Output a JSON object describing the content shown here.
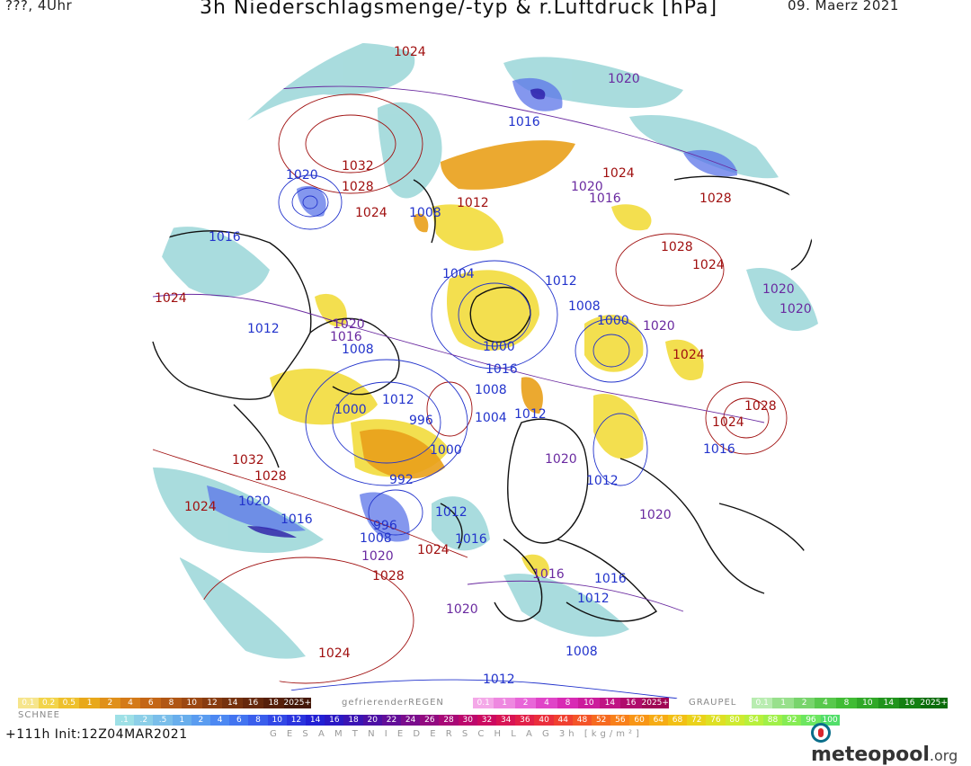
{
  "header": {
    "run_label": "???, 4Uhr",
    "title": "3h Niederschlagsmenge/-typ & r.Luftdruck [hPa]",
    "date": "09. Maerz 2021"
  },
  "map": {
    "colors": {
      "water_bg": "#ffffff",
      "rain_yellow": "#f2dc3c",
      "rain_orange": "#e9a01a",
      "snow_cyan": "#9ad6d8",
      "snow_blue": "#5b74e8",
      "snow_dark": "#2a1aa8",
      "isobar_high": "#a01010",
      "isobar_low": "#2233cc",
      "isobar_mid": "#6a2aa0"
    },
    "isobar_labels": [
      {
        "text": "1024",
        "kind": "high"
      },
      {
        "text": "1020",
        "kind": "mid"
      },
      {
        "text": "1016",
        "kind": "low"
      },
      {
        "text": "1020",
        "kind": "low"
      },
      {
        "text": "1032",
        "kind": "high"
      },
      {
        "text": "1028",
        "kind": "high"
      },
      {
        "text": "1024",
        "kind": "high"
      },
      {
        "text": "1008",
        "kind": "low"
      },
      {
        "text": "1012",
        "kind": "high"
      },
      {
        "text": "1020",
        "kind": "mid"
      },
      {
        "text": "1016",
        "kind": "mid"
      },
      {
        "text": "1024",
        "kind": "high"
      },
      {
        "text": "1028",
        "kind": "high"
      },
      {
        "text": "1016",
        "kind": "low"
      },
      {
        "text": "1028",
        "kind": "high"
      },
      {
        "text": "1024",
        "kind": "high"
      },
      {
        "text": "1004",
        "kind": "low"
      },
      {
        "text": "1012",
        "kind": "low"
      },
      {
        "text": "1020",
        "kind": "mid"
      },
      {
        "text": "1020",
        "kind": "mid"
      },
      {
        "text": "1024",
        "kind": "high"
      },
      {
        "text": "1012",
        "kind": "low"
      },
      {
        "text": "1020",
        "kind": "mid"
      },
      {
        "text": "1016",
        "kind": "mid"
      },
      {
        "text": "1008",
        "kind": "low"
      },
      {
        "text": "1008",
        "kind": "low"
      },
      {
        "text": "1000",
        "kind": "low"
      },
      {
        "text": "1020",
        "kind": "mid"
      },
      {
        "text": "1000",
        "kind": "low"
      },
      {
        "text": "1024",
        "kind": "high"
      },
      {
        "text": "1016",
        "kind": "low"
      },
      {
        "text": "1012",
        "kind": "low"
      },
      {
        "text": "1000",
        "kind": "low"
      },
      {
        "text": "996",
        "kind": "low"
      },
      {
        "text": "1008",
        "kind": "low"
      },
      {
        "text": "1004",
        "kind": "low"
      },
      {
        "text": "1012",
        "kind": "low"
      },
      {
        "text": "1028",
        "kind": "high"
      },
      {
        "text": "1024",
        "kind": "high"
      },
      {
        "text": "1000",
        "kind": "low"
      },
      {
        "text": "1016",
        "kind": "low"
      },
      {
        "text": "1032",
        "kind": "high"
      },
      {
        "text": "1028",
        "kind": "high"
      },
      {
        "text": "992",
        "kind": "low"
      },
      {
        "text": "1020",
        "kind": "mid"
      },
      {
        "text": "1012",
        "kind": "low"
      },
      {
        "text": "1024",
        "kind": "high"
      },
      {
        "text": "1020",
        "kind": "low"
      },
      {
        "text": "1016",
        "kind": "low"
      },
      {
        "text": "996",
        "kind": "low"
      },
      {
        "text": "1012",
        "kind": "low"
      },
      {
        "text": "1008",
        "kind": "low"
      },
      {
        "text": "1016",
        "kind": "low"
      },
      {
        "text": "1020",
        "kind": "mid"
      },
      {
        "text": "1020",
        "kind": "low"
      },
      {
        "text": "1024",
        "kind": "high"
      },
      {
        "text": "1028",
        "kind": "high"
      },
      {
        "text": "1016",
        "kind": "mid"
      },
      {
        "text": "1016",
        "kind": "low"
      },
      {
        "text": "1012",
        "kind": "low"
      },
      {
        "text": "1020",
        "kind": "mid"
      },
      {
        "text": "1024",
        "kind": "high"
      },
      {
        "text": "1008",
        "kind": "low"
      },
      {
        "text": "1012",
        "kind": "low"
      }
    ]
  },
  "legends": {
    "snow": {
      "label": "SCHNEE",
      "values": [
        "0.1",
        "0.2",
        "0.5",
        "1",
        "2",
        "4",
        "6",
        "8",
        "10",
        "12",
        "14",
        "16",
        "18",
        "2025+"
      ],
      "colors": [
        "#f6e58c",
        "#f2d44a",
        "#eec02c",
        "#e8a81a",
        "#e0901a",
        "#d47a18",
        "#c46616",
        "#b05614",
        "#9c4812",
        "#883c10",
        "#76320e",
        "#66280c",
        "#561f0a",
        "#441808"
      ]
    },
    "freezing_rain": {
      "label": "gefrierenderREGEN",
      "values": [
        "0.1",
        "1",
        "2",
        "4",
        "8",
        "10",
        "14",
        "16",
        "2025+"
      ],
      "colors": [
        "#f4a8e8",
        "#ee88e0",
        "#e866d8",
        "#e044c8",
        "#d82ab4",
        "#cc1c9c",
        "#c01484",
        "#b00c6c",
        "#a00654"
      ]
    },
    "graupel": {
      "label": "GRAUPEL",
      "values": [
        "0.1",
        "1",
        "2",
        "4",
        "8",
        "10",
        "14",
        "16",
        "2025+"
      ],
      "colors": [
        "#b8ecb0",
        "#98e08c",
        "#78d46c",
        "#58c84c",
        "#40bc34",
        "#30a828",
        "#20941c",
        "#148012",
        "#0a6c0a"
      ]
    },
    "total": {
      "label": "G E S A M T N I E D E R S C H L A G   3h   [kg/m²]",
      "values": [
        ".1",
        ".2",
        ".5",
        "1",
        "2",
        "4",
        "6",
        "8",
        "10",
        "12",
        "14",
        "16",
        "18",
        "20",
        "22",
        "24",
        "26",
        "28",
        "30",
        "32",
        "34",
        "36",
        "40",
        "44",
        "48",
        "52",
        "56",
        "60",
        "64",
        "68",
        "72",
        "76",
        "80",
        "84",
        "88",
        "92",
        "96",
        "100"
      ],
      "colors": [
        "#9ee0e6",
        "#8ccfe8",
        "#7abeea",
        "#68aeec",
        "#5a9cf0",
        "#4c88f2",
        "#4274f0",
        "#3a5eec",
        "#3248e6",
        "#2a34de",
        "#2220d4",
        "#2a18c4",
        "#3a14b4",
        "#4c10a4",
        "#620e98",
        "#7a0c8c",
        "#920a80",
        "#a80876",
        "#bc086c",
        "#cc0a60",
        "#d81454",
        "#e22048",
        "#ea2e3c",
        "#f04030",
        "#f45428",
        "#f66a20",
        "#f8801a",
        "#f89616",
        "#f6ac14",
        "#f2c014",
        "#ead21a",
        "#dee024",
        "#ceea30",
        "#b8f03c",
        "#a0f048",
        "#86ec54",
        "#6ce660",
        "#52de6a"
      ]
    }
  },
  "footer": {
    "forecast": "+111h  Init:12Z04MAR2021",
    "logo_prefix": "",
    "logo_main": "meteopool",
    "logo_suffix": ".org"
  }
}
